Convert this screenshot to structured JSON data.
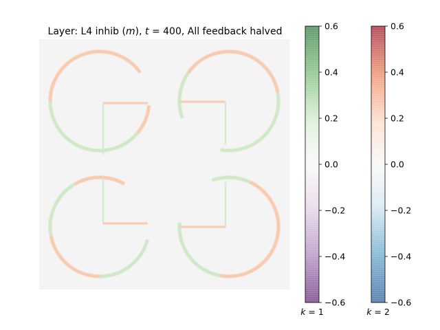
{
  "title": {
    "prefix": "Layer: L4 inhib (",
    "m": "m",
    "mid": "), ",
    "t": "t",
    "suffix": " = 400, All feedback halved"
  },
  "chart_data": {
    "type": "heatmap",
    "description_visible": "Four quarter-circle ring arcs plus inner square corner segments on near-white background",
    "background_color": "#f4f4f4",
    "value_range": [
      -0.6,
      0.6
    ],
    "colorbars": [
      {
        "label_prefix": "k",
        "label_suffix": " = 1",
        "colormap": "PRGn",
        "ticks": [
          "0.6",
          "0.4",
          "0.2",
          "0.0",
          "−0.2",
          "−0.4",
          "−0.6"
        ],
        "tick_values": [
          0.6,
          0.4,
          0.2,
          0.0,
          -0.2,
          -0.4,
          -0.6
        ],
        "top_color": "#1b7837",
        "mid_color": "#f7f7f7",
        "bottom_color": "#762a83"
      },
      {
        "label_prefix": "k",
        "label_suffix": " = 2",
        "colormap": "RdBu",
        "ticks": [
          "0.6",
          "0.4",
          "0.2",
          "0.0",
          "−0.2",
          "−0.4",
          "−0.6"
        ],
        "tick_values": [
          0.6,
          0.4,
          0.2,
          0.0,
          -0.2,
          -0.4,
          -0.6
        ],
        "top_color": "#b2182b",
        "mid_color": "#f7f7f7",
        "bottom_color": "#2166ac"
      }
    ],
    "pattern_colors": {
      "green_arc": "#cfe8c8",
      "orange_arc": "#f8cbb0"
    }
  }
}
